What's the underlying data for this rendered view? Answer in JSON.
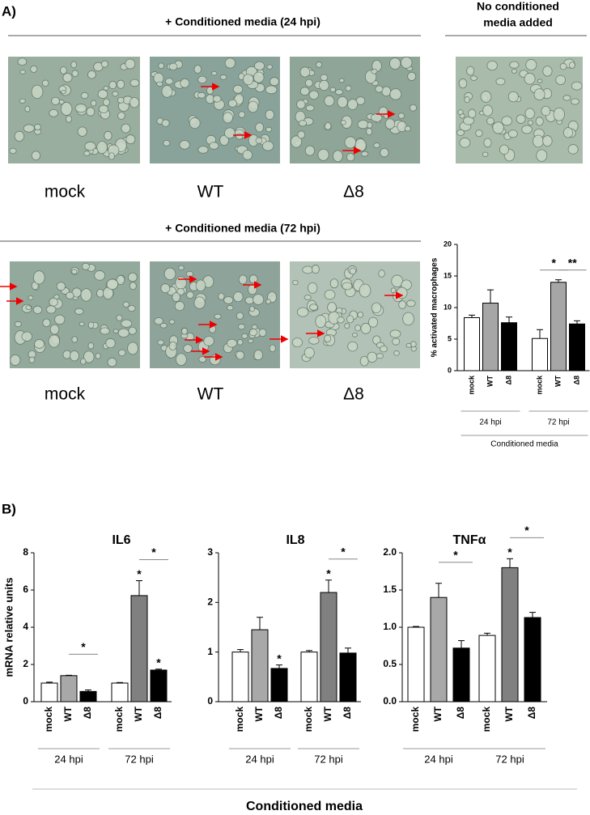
{
  "panel_a": {
    "label": "A)",
    "row1_title": "+ Conditioned media (24 hpi)",
    "row1_labels": [
      "mock",
      "WT",
      "Δ8"
    ],
    "control_title": [
      "No conditioned",
      "media added"
    ],
    "row2_title": "+ Conditioned media (72 hpi)",
    "row2_labels": [
      "mock",
      "WT",
      "Δ8"
    ]
  },
  "panel_b": {
    "label": "B)",
    "footer": "Conditioned media"
  },
  "chart_data": [
    {
      "type": "bar",
      "ylabel": "% activated macrophages",
      "categories": [
        "mock",
        "WT",
        "Δ8",
        "mock",
        "WT",
        "Δ8"
      ],
      "groups": [
        "24 hpi",
        "72 hpi"
      ],
      "group_title": "Conditioned media",
      "values": [
        8.4,
        10.7,
        7.6,
        5.1,
        14.0,
        7.4
      ],
      "errors": [
        0.4,
        2.1,
        0.9,
        1.4,
        0.4,
        0.5
      ],
      "colors": [
        "#ffffff",
        "#a6a6a6",
        "#000000",
        "#ffffff",
        "#a6a6a6",
        "#000000"
      ],
      "ylim": [
        0,
        20
      ],
      "yticks": [
        0,
        5,
        10,
        15,
        20
      ],
      "annotations": [
        {
          "text": "*",
          "bars": [
            3,
            4
          ]
        },
        {
          "text": "**",
          "bars": [
            4,
            5
          ]
        }
      ]
    },
    {
      "type": "bar",
      "title": "IL6",
      "ylabel": "mRNA relative units",
      "categories": [
        "mock",
        "WT",
        "Δ8",
        "mock",
        "WT",
        "Δ8"
      ],
      "groups": [
        "24 hpi",
        "72 hpi"
      ],
      "values": [
        1.0,
        1.4,
        0.55,
        1.0,
        5.7,
        1.7
      ],
      "errors": [
        0.05,
        0.02,
        0.08,
        0.03,
        0.8,
        0.05
      ],
      "colors": [
        "#ffffff",
        "#a8a8a8",
        "#000000",
        "#ffffff",
        "#808080",
        "#000000"
      ],
      "ylim": [
        0,
        8
      ],
      "yticks": [
        0,
        2,
        4,
        6,
        8
      ],
      "annotations": [
        {
          "text": "*",
          "bars": [
            1,
            2
          ]
        },
        {
          "text": "*",
          "bars": [
            4
          ]
        },
        {
          "text": "*",
          "bars": [
            5
          ]
        },
        {
          "text": "*",
          "bars": [
            4,
            5
          ]
        }
      ]
    },
    {
      "type": "bar",
      "title": "IL8",
      "categories": [
        "mock",
        "WT",
        "Δ8",
        "mock",
        "WT",
        "Δ8"
      ],
      "groups": [
        "24 hpi",
        "72 hpi"
      ],
      "values": [
        1.0,
        1.45,
        0.67,
        1.0,
        2.2,
        0.98
      ],
      "errors": [
        0.05,
        0.25,
        0.07,
        0.03,
        0.25,
        0.1
      ],
      "colors": [
        "#ffffff",
        "#a8a8a8",
        "#000000",
        "#ffffff",
        "#808080",
        "#000000"
      ],
      "ylim": [
        0,
        3
      ],
      "yticks": [
        0,
        1,
        2,
        3
      ],
      "annotations": [
        {
          "text": "*",
          "bars": [
            2
          ]
        },
        {
          "text": "*",
          "bars": [
            4
          ]
        },
        {
          "text": "*",
          "bars": [
            4,
            5
          ]
        }
      ]
    },
    {
      "type": "bar",
      "title": "TNFα",
      "categories": [
        "mock",
        "WT",
        "Δ8",
        "mock",
        "WT",
        "Δ8"
      ],
      "groups": [
        "24 hpi",
        "72 hpi"
      ],
      "values": [
        1.0,
        1.4,
        0.72,
        0.89,
        1.8,
        1.13
      ],
      "errors": [
        0.01,
        0.19,
        0.1,
        0.03,
        0.12,
        0.07
      ],
      "colors": [
        "#ffffff",
        "#a8a8a8",
        "#000000",
        "#ffffff",
        "#808080",
        "#000000"
      ],
      "ylim": [
        0,
        2.0
      ],
      "yticks": [
        {
          "value": 0,
          "label": "0.0"
        },
        {
          "value": 0.5,
          "label": "0.5"
        },
        {
          "value": 1,
          "label": "1.0"
        },
        {
          "value": 1.5,
          "label": "1.5"
        },
        {
          "value": 2,
          "label": "2.0"
        }
      ],
      "annotations": [
        {
          "text": "*",
          "bars": [
            1,
            2
          ]
        },
        {
          "text": "*",
          "bars": [
            4
          ]
        },
        {
          "text": "*",
          "bars": [
            4,
            5
          ]
        }
      ]
    }
  ]
}
